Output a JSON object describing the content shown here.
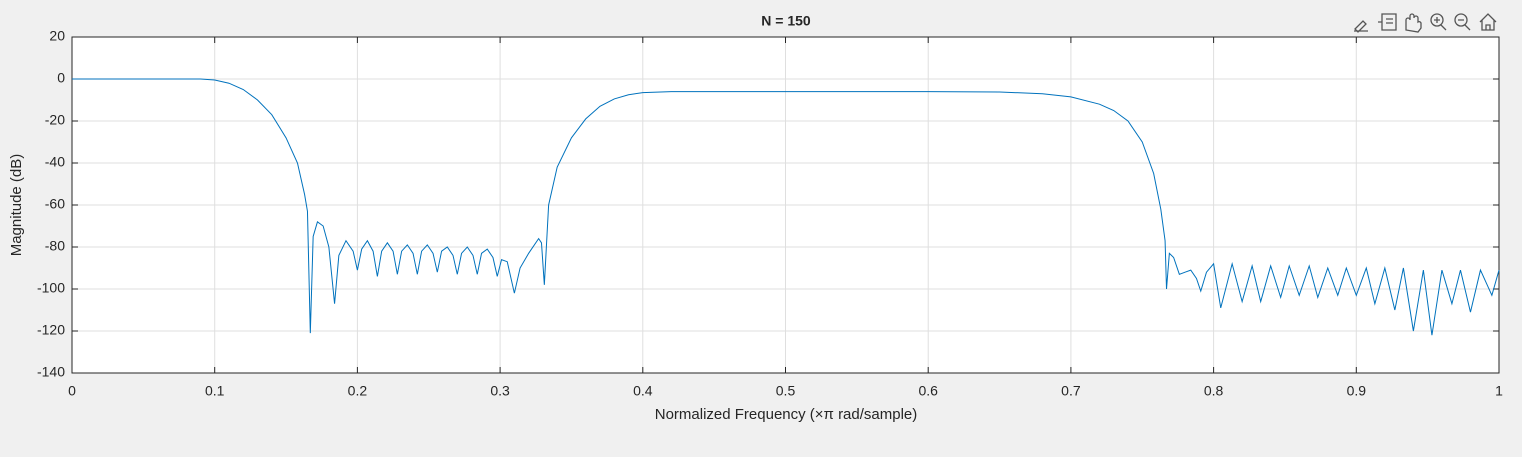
{
  "chart_data": {
    "type": "line",
    "title": "N = 150",
    "x_label": "Normalized Frequency  (×π rad/sample)",
    "y_label": "Magnitude (dB)",
    "x": [
      0,
      0.05,
      0.09,
      0.1,
      0.11,
      0.12,
      0.13,
      0.14,
      0.15,
      0.158,
      0.163,
      0.165,
      0.167,
      0.169,
      0.172,
      0.176,
      0.18,
      0.184,
      0.187,
      0.192,
      0.197,
      0.2,
      0.203,
      0.207,
      0.211,
      0.214,
      0.217,
      0.221,
      0.225,
      0.228,
      0.231,
      0.235,
      0.239,
      0.242,
      0.245,
      0.249,
      0.253,
      0.256,
      0.259,
      0.263,
      0.267,
      0.27,
      0.273,
      0.277,
      0.281,
      0.284,
      0.287,
      0.291,
      0.295,
      0.298,
      0.301,
      0.305,
      0.31,
      0.314,
      0.32,
      0.327,
      0.329,
      0.331,
      0.334,
      0.34,
      0.35,
      0.36,
      0.37,
      0.38,
      0.39,
      0.4,
      0.42,
      0.5,
      0.6,
      0.65,
      0.68,
      0.7,
      0.72,
      0.73,
      0.74,
      0.75,
      0.758,
      0.763,
      0.766,
      0.767,
      0.769,
      0.772,
      0.776,
      0.78,
      0.784,
      0.788,
      0.791,
      0.795,
      0.8,
      0.805,
      0.813,
      0.82,
      0.827,
      0.833,
      0.84,
      0.847,
      0.853,
      0.86,
      0.867,
      0.873,
      0.88,
      0.887,
      0.893,
      0.9,
      0.907,
      0.913,
      0.92,
      0.927,
      0.933,
      0.94,
      0.947,
      0.953,
      0.96,
      0.967,
      0.973,
      0.98,
      0.987,
      0.995,
      1
    ],
    "series": [
      {
        "name": "Magnitude",
        "color": "#0072bd",
        "values": [
          0,
          0,
          0,
          -0.5,
          -2,
          -5,
          -10,
          -17,
          -28,
          -40,
          -55,
          -63,
          -121,
          -75,
          -68,
          -70,
          -80,
          -107,
          -84,
          -77,
          -82,
          -91,
          -81,
          -77,
          -82,
          -94,
          -82,
          -78,
          -82,
          -93,
          -82,
          -79,
          -83,
          -93,
          -82,
          -79,
          -83,
          -92,
          -82,
          -80,
          -84,
          -93,
          -83,
          -80,
          -84,
          -93,
          -83,
          -81,
          -85,
          -94,
          -86,
          -87,
          -102,
          -90,
          -83,
          -76,
          -78,
          -98,
          -60,
          -42,
          -28,
          -19,
          -13,
          -9.5,
          -7.5,
          -6.5,
          -6,
          -6,
          -6,
          -6.2,
          -7,
          -8.5,
          -12,
          -15,
          -20,
          -30,
          -45,
          -62,
          -77,
          -100,
          -83,
          -85,
          -93,
          -92,
          -91,
          -95,
          -101,
          -92,
          -88,
          -109,
          -88,
          -106,
          -89,
          -106,
          -89,
          -104,
          -89,
          -103,
          -89,
          -104,
          -90,
          -103,
          -90,
          -103,
          -90,
          -107,
          -90,
          -110,
          -90,
          -120,
          -91,
          -122,
          -91,
          -107,
          -91,
          -111,
          -91,
          -103,
          -91
        ]
      }
    ],
    "xlim": [
      0,
      1
    ],
    "ylim": [
      -140,
      20
    ],
    "xticks": [
      0,
      0.1,
      0.2,
      0.3,
      0.4,
      0.5,
      0.6,
      0.7,
      0.8,
      0.9,
      1
    ],
    "yticks": [
      -140,
      -120,
      -100,
      -80,
      -60,
      -40,
      -20,
      0,
      20
    ],
    "grid": true
  }
}
